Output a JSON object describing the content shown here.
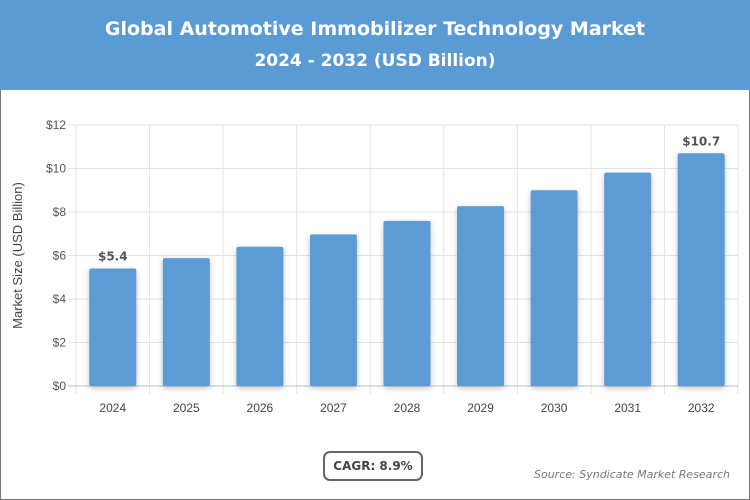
{
  "header": {
    "title": "Global Automotive Immobilizer Technology Market",
    "subtitle": "2024 - 2032 (USD Billion)"
  },
  "chart_data": {
    "type": "bar",
    "title": "Global Automotive Immobilizer Technology Market",
    "subtitle": "2024 - 2032 (USD Billion)",
    "categories": [
      "2024",
      "2025",
      "2026",
      "2027",
      "2028",
      "2029",
      "2030",
      "2031",
      "2032"
    ],
    "values": [
      5.4,
      5.88,
      6.4,
      6.97,
      7.59,
      8.27,
      9.0,
      9.81,
      10.7
    ],
    "data_labels": {
      "0": "$5.4",
      "8": "$10.7"
    },
    "xlabel": "",
    "ylabel": "Market Size (USD Billion)",
    "ylim": [
      0,
      12
    ],
    "yticks": [
      "$0",
      "$2",
      "$4",
      "$6",
      "$8",
      "$10",
      "$12"
    ],
    "grid": true,
    "bar_color": "#5b9bd5"
  },
  "footer": {
    "cagr": "CAGR: 8.9%",
    "source": "Source: Syndicate Market Research"
  }
}
